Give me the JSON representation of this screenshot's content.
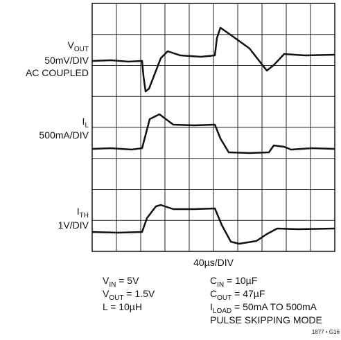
{
  "channels": [
    {
      "name": {
        "main": "V",
        "sub": "OUT"
      },
      "scale": "50mV/DIV",
      "note": "AC COUPLED"
    },
    {
      "name": {
        "main": "I",
        "sub": "L"
      },
      "scale": "500mA/DIV"
    },
    {
      "name": {
        "main": "I",
        "sub": "TH"
      },
      "scale": "1V/DIV"
    }
  ],
  "timebase": "40µs/DIV",
  "conditions_left": [
    {
      "main": "V",
      "sub": "IN",
      "rest": " = 5V"
    },
    {
      "main": "V",
      "sub": "OUT",
      "rest": " = 1.5V"
    },
    {
      "main": "L = 10µH"
    }
  ],
  "conditions_right": [
    {
      "main": "C",
      "sub": "IN",
      "rest": " = 10µF"
    },
    {
      "main": "C",
      "sub": "OUT",
      "rest": " = 47µF"
    },
    {
      "main": "I",
      "sub": "LOAD",
      "rest": " = 50mA TO 500mA"
    },
    {
      "main": "PULSE SKIPPING MODE"
    }
  ],
  "figure_id": "1877 • G16"
}
